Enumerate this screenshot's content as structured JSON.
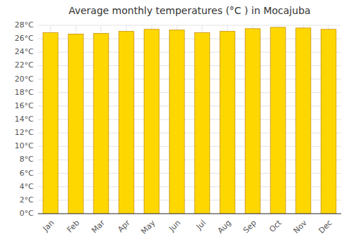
{
  "chart_data": {
    "type": "bar",
    "title": "Average monthly temperatures (°C ) in Mocajuba",
    "categories": [
      "Jan",
      "Feb",
      "Mar",
      "Apr",
      "May",
      "Jun",
      "Jul",
      "Aug",
      "Sep",
      "Oct",
      "Nov",
      "Dec"
    ],
    "values": [
      26.9,
      26.7,
      26.8,
      27.1,
      27.4,
      27.3,
      26.9,
      27.1,
      27.5,
      27.7,
      27.6,
      27.4
    ],
    "color": "#FFD700",
    "ylim": [
      0,
      28
    ],
    "yticks": [
      {
        "value": 0,
        "label": "0°C"
      },
      {
        "value": 2,
        "label": "2°C"
      },
      {
        "value": 4,
        "label": "4°C"
      },
      {
        "value": 6,
        "label": "6°C"
      },
      {
        "value": 8,
        "label": "8°C"
      },
      {
        "value": 10,
        "label": "10°C"
      },
      {
        "value": 12,
        "label": "12°C"
      },
      {
        "value": 14,
        "label": "14°C"
      },
      {
        "value": 16,
        "label": "16°C"
      },
      {
        "value": 18,
        "label": "18°C"
      },
      {
        "value": 20,
        "label": "20°C"
      },
      {
        "value": 22,
        "label": "22°C"
      },
      {
        "value": 24,
        "label": "24°C"
      },
      {
        "value": 26,
        "label": "26°C"
      },
      {
        "value": 28,
        "label": "28°C"
      }
    ],
    "grid": true
  }
}
